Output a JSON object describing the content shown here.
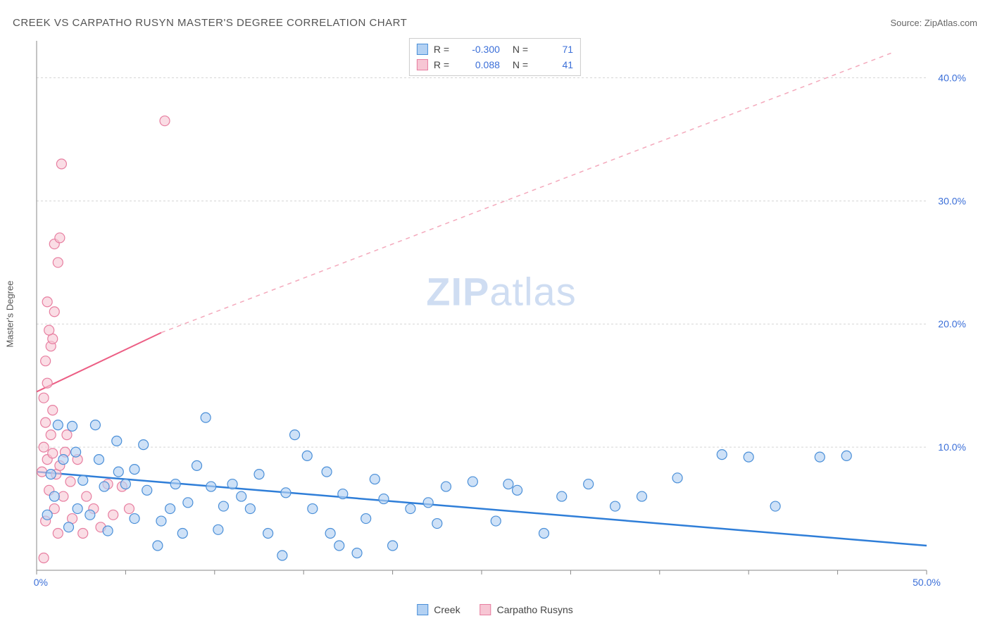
{
  "title": "CREEK VS CARPATHO RUSYN MASTER'S DEGREE CORRELATION CHART",
  "source_label": "Source: ZipAtlas.com",
  "y_axis_label": "Master's Degree",
  "watermark": {
    "bold": "ZIP",
    "rest": "atlas"
  },
  "chart": {
    "type": "scatter",
    "xlim": [
      0,
      50
    ],
    "ylim": [
      0,
      43
    ],
    "x_ticks": [
      0,
      5,
      10,
      15,
      20,
      25,
      30,
      35,
      40,
      45,
      50
    ],
    "x_tick_labels": {
      "0": "0.0%",
      "50": "50.0%"
    },
    "y_ticks": [
      10,
      20,
      30,
      40
    ],
    "y_tick_labels": {
      "10": "10.0%",
      "20": "20.0%",
      "30": "30.0%",
      "40": "40.0%"
    },
    "grid_color": "#d5d5d5",
    "background_color": "#ffffff",
    "marker_radius": 7,
    "series": [
      {
        "name": "Creek",
        "color_fill": "#b3d1f3",
        "color_stroke": "#4a8fd8",
        "R": "-0.300",
        "N": "71",
        "trend": {
          "x1": 0,
          "y1": 8.0,
          "x2": 50,
          "y2": 2.0,
          "style": "solid",
          "color": "#2f7ed8"
        },
        "points": [
          [
            1.2,
            11.8
          ],
          [
            2.0,
            11.7
          ],
          [
            3.3,
            11.8
          ],
          [
            2.2,
            9.6
          ],
          [
            4.5,
            10.5
          ],
          [
            5.5,
            8.2
          ],
          [
            6.0,
            10.2
          ],
          [
            9.5,
            12.4
          ],
          [
            11.0,
            7.0
          ],
          [
            14.5,
            11.0
          ],
          [
            15.2,
            9.3
          ],
          [
            9.8,
            6.8
          ],
          [
            10.5,
            5.2
          ],
          [
            12.0,
            5.0
          ],
          [
            13.0,
            3.0
          ],
          [
            13.8,
            1.2
          ],
          [
            16.5,
            3.0
          ],
          [
            17.0,
            2.0
          ],
          [
            18.0,
            1.4
          ],
          [
            16.3,
            8.0
          ],
          [
            17.2,
            6.2
          ],
          [
            19.5,
            5.8
          ],
          [
            21.0,
            5.0
          ],
          [
            22.5,
            3.8
          ],
          [
            23.0,
            6.8
          ],
          [
            24.5,
            7.2
          ],
          [
            25.8,
            4.0
          ],
          [
            27.0,
            6.5
          ],
          [
            28.5,
            3.0
          ],
          [
            29.5,
            6.0
          ],
          [
            31.0,
            7.0
          ],
          [
            32.5,
            5.2
          ],
          [
            34.0,
            6.0
          ],
          [
            36.0,
            7.5
          ],
          [
            38.5,
            9.4
          ],
          [
            40.0,
            9.2
          ],
          [
            41.5,
            5.2
          ],
          [
            44.0,
            9.2
          ],
          [
            45.5,
            9.3
          ],
          [
            7.0,
            4.0
          ],
          [
            7.8,
            7.0
          ],
          [
            8.5,
            5.5
          ],
          [
            8.2,
            3.0
          ],
          [
            6.8,
            2.0
          ],
          [
            5.0,
            7.0
          ],
          [
            5.5,
            4.2
          ],
          [
            3.8,
            6.8
          ],
          [
            3.0,
            4.5
          ],
          [
            2.6,
            7.3
          ],
          [
            1.5,
            9.0
          ],
          [
            1.0,
            6.0
          ],
          [
            0.8,
            7.8
          ],
          [
            4.0,
            3.2
          ],
          [
            11.5,
            6.0
          ],
          [
            18.5,
            4.2
          ],
          [
            20.0,
            2.0
          ],
          [
            9.0,
            8.5
          ],
          [
            2.3,
            5.0
          ],
          [
            3.5,
            9.0
          ],
          [
            6.2,
            6.5
          ],
          [
            7.5,
            5.0
          ],
          [
            12.5,
            7.8
          ],
          [
            14.0,
            6.3
          ],
          [
            15.5,
            5.0
          ],
          [
            10.2,
            3.3
          ],
          [
            4.6,
            8.0
          ],
          [
            1.8,
            3.5
          ],
          [
            0.6,
            4.5
          ],
          [
            26.5,
            7.0
          ],
          [
            22.0,
            5.5
          ],
          [
            19.0,
            7.4
          ]
        ]
      },
      {
        "name": "Carpatho Rusyns",
        "color_fill": "#f7c6d4",
        "color_stroke": "#e77ea0",
        "R": "0.088",
        "N": "41",
        "trend_solid": {
          "x1": 0,
          "y1": 14.5,
          "x2": 7,
          "y2": 19.3,
          "color": "#ec5e84"
        },
        "trend_dash": {
          "x1": 7,
          "y1": 19.3,
          "x2": 48,
          "y2": 42.0,
          "color": "#f4a9bc"
        },
        "points": [
          [
            0.4,
            14.0
          ],
          [
            0.6,
            15.2
          ],
          [
            0.5,
            17.0
          ],
          [
            0.8,
            18.2
          ],
          [
            0.9,
            18.8
          ],
          [
            0.7,
            19.5
          ],
          [
            1.0,
            21.0
          ],
          [
            0.6,
            21.8
          ],
          [
            1.2,
            25.0
          ],
          [
            1.0,
            26.5
          ],
          [
            1.3,
            27.0
          ],
          [
            1.4,
            33.0
          ],
          [
            7.2,
            36.5
          ],
          [
            0.5,
            12.0
          ],
          [
            0.8,
            11.0
          ],
          [
            0.4,
            10.0
          ],
          [
            0.6,
            9.0
          ],
          [
            0.9,
            9.5
          ],
          [
            1.1,
            7.8
          ],
          [
            1.3,
            8.5
          ],
          [
            1.6,
            9.6
          ],
          [
            0.7,
            6.5
          ],
          [
            1.0,
            5.0
          ],
          [
            1.5,
            6.0
          ],
          [
            1.9,
            7.2
          ],
          [
            2.3,
            9.0
          ],
          [
            2.8,
            6.0
          ],
          [
            3.2,
            5.0
          ],
          [
            3.6,
            3.5
          ],
          [
            4.0,
            7.0
          ],
          [
            4.3,
            4.5
          ],
          [
            4.8,
            6.8
          ],
          [
            5.2,
            5.0
          ],
          [
            1.2,
            3.0
          ],
          [
            0.5,
            4.0
          ],
          [
            2.0,
            4.2
          ],
          [
            2.6,
            3.0
          ],
          [
            0.3,
            8.0
          ],
          [
            0.9,
            13.0
          ],
          [
            1.7,
            11.0
          ],
          [
            0.4,
            1.0
          ]
        ]
      }
    ]
  },
  "legend_top": {
    "rows": [
      {
        "swatch": "blue",
        "r_label": "R =",
        "r_val": "-0.300",
        "n_label": "N =",
        "n_val": "71"
      },
      {
        "swatch": "pink",
        "r_label": "R =",
        "r_val": "0.088",
        "n_label": "N =",
        "n_val": "41"
      }
    ]
  },
  "legend_bottom": {
    "items": [
      {
        "swatch": "blue",
        "label": "Creek"
      },
      {
        "swatch": "pink",
        "label": "Carpatho Rusyns"
      }
    ]
  }
}
